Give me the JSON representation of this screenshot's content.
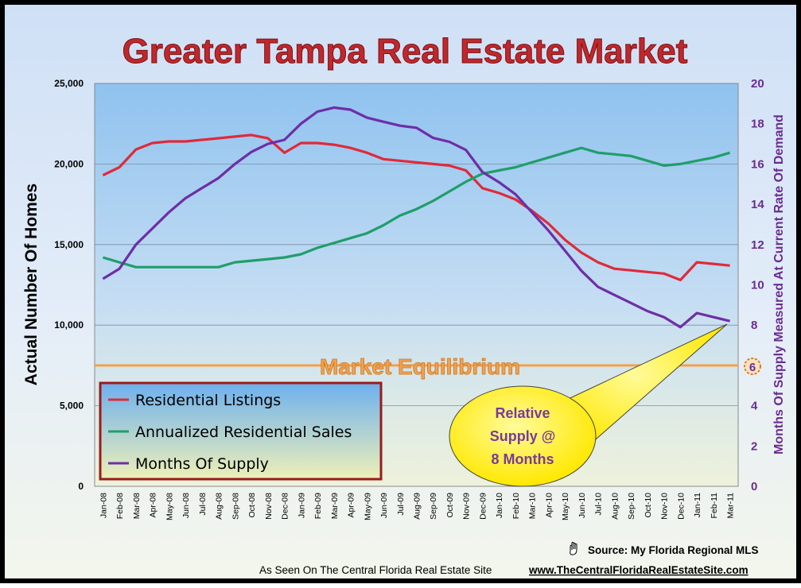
{
  "chart_data": {
    "type": "line",
    "title": "Greater Tampa Real Estate Market",
    "ylabel": "Actual Number Of Homes",
    "y2label": "Months Of Supply Measured At Current Rate Of Demand",
    "ylim": [
      0,
      25000
    ],
    "y2lim": [
      0,
      20
    ],
    "yticks": [
      "0",
      "5,000",
      "10,000",
      "15,000",
      "20,000",
      "25,000"
    ],
    "y2ticks": [
      "0",
      "2",
      "4",
      "6",
      "8",
      "10",
      "12",
      "14",
      "16",
      "18",
      "20"
    ],
    "grid": true,
    "legend_position": "bottom-left",
    "categories": [
      "Jan-08",
      "Feb-08",
      "Mar-08",
      "Apr-08",
      "May-08",
      "Jun-08",
      "Jul-08",
      "Aug-08",
      "Sep-08",
      "Oct-08",
      "Nov-08",
      "Dec-08",
      "Jan-09",
      "Feb-09",
      "Mar-09",
      "Apr-09",
      "May-09",
      "Jun-09",
      "Jul-09",
      "Aug-09",
      "Sep-09",
      "Oct-09",
      "Nov-09",
      "Dec-09",
      "Jan-10",
      "Feb-10",
      "Mar-10",
      "Apr-10",
      "May-10",
      "Jun-10",
      "Jul-10",
      "Aug-10",
      "Sep-10",
      "Oct-10",
      "Nov-10",
      "Dec-10",
      "Jan-11",
      "Feb-11",
      "Mar-11"
    ],
    "series": [
      {
        "name": "Residential Listings",
        "axis": "left",
        "color": "#e02a3a",
        "values": [
          19300,
          19800,
          20900,
          21300,
          21400,
          21400,
          21500,
          21600,
          21700,
          21800,
          21600,
          20700,
          21300,
          21300,
          21200,
          21000,
          20700,
          20300,
          20200,
          20100,
          20000,
          19900,
          19600,
          18500,
          18200,
          17800,
          17100,
          16300,
          15300,
          14500,
          13900,
          13500,
          13400,
          13300,
          13200,
          12800,
          13900,
          13800,
          13700
        ]
      },
      {
        "name": "Annualized Residential Sales",
        "axis": "left",
        "color": "#1f9e6a",
        "values": [
          14200,
          13900,
          13600,
          13600,
          13600,
          13600,
          13600,
          13600,
          13900,
          14000,
          14100,
          14200,
          14400,
          14800,
          15100,
          15400,
          15700,
          16200,
          16800,
          17200,
          17700,
          18300,
          18900,
          19400,
          19600,
          19800,
          20100,
          20400,
          20700,
          21000,
          20700,
          20600,
          20500,
          20200,
          19900,
          20000,
          20200,
          20400,
          20700
        ]
      },
      {
        "name": "Months Of Supply",
        "axis": "right",
        "color": "#6e2ea6",
        "values": [
          10.3,
          10.8,
          12.0,
          12.8,
          13.6,
          14.3,
          14.8,
          15.3,
          16.0,
          16.6,
          17.0,
          17.2,
          18.0,
          18.6,
          18.8,
          18.7,
          18.3,
          18.1,
          17.9,
          17.8,
          17.3,
          17.1,
          16.7,
          15.6,
          15.1,
          14.5,
          13.6,
          12.7,
          11.7,
          10.7,
          9.9,
          9.5,
          9.1,
          8.7,
          8.4,
          7.9,
          8.6,
          8.4,
          8.2
        ]
      }
    ],
    "annotations": {
      "equilibrium_label": "Market Equilibrium",
      "equilibrium_value": "6",
      "equilibrium_months": 6,
      "callout_text": [
        "Relative",
        "Supply @",
        "8 Months"
      ]
    }
  },
  "footer": {
    "source_label": "Source:  My Florida Regional MLS",
    "seen_on": "As Seen On The Central Florida Real Estate Site",
    "url": "www.TheCentralFloridaRealEstateSite.com"
  },
  "colors": {
    "title": "#c0282d",
    "legend_border": "#9b1b1b",
    "equilibrium": "#f2a050",
    "callout_fill": "#fff200",
    "callout_text": "#7a3a9a",
    "axis_right": "#6a2c91"
  }
}
